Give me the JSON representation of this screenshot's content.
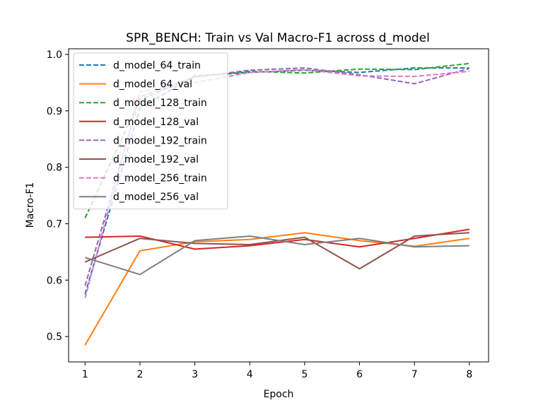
{
  "chart_data": {
    "type": "line",
    "title": "SPR_BENCH: Train vs Val Macro-F1 across d_model",
    "xlabel": "Epoch",
    "ylabel": "Macro-F1",
    "xlim": [
      0.7,
      8.35
    ],
    "ylim": [
      0.455,
      1.01
    ],
    "x": [
      1,
      2,
      3,
      4,
      5,
      6,
      7,
      8
    ],
    "x_ticks": [
      "1",
      "2",
      "3",
      "4",
      "5",
      "6",
      "7",
      "8"
    ],
    "y_ticks": [
      0.5,
      0.6,
      0.7,
      0.8,
      0.9,
      1.0
    ],
    "y_tick_labels": [
      "0.5",
      "0.6",
      "0.7",
      "0.8",
      "0.9",
      "1.0"
    ],
    "grid": false,
    "legend_position": "upper-left",
    "series": [
      {
        "name": "d_model_64_train",
        "color": "#1f77b4",
        "dash": "dashed",
        "values": [
          0.575,
          0.905,
          0.962,
          0.968,
          0.972,
          0.968,
          0.976,
          0.976
        ]
      },
      {
        "name": "d_model_64_val",
        "color": "#ff7f0e",
        "dash": "solid",
        "values": [
          0.485,
          0.652,
          0.668,
          0.672,
          0.684,
          0.67,
          0.66,
          0.674
        ]
      },
      {
        "name": "d_model_128_train",
        "color": "#2ca02c",
        "dash": "dashed",
        "values": [
          0.71,
          0.92,
          0.96,
          0.97,
          0.967,
          0.974,
          0.973,
          0.984
        ]
      },
      {
        "name": "d_model_128_val",
        "color": "#d62728",
        "dash": "solid",
        "values": [
          0.676,
          0.678,
          0.655,
          0.661,
          0.672,
          0.659,
          0.674,
          0.69
        ]
      },
      {
        "name": "d_model_192_train",
        "color": "#9467bd",
        "dash": "dashed",
        "values": [
          0.59,
          0.925,
          0.96,
          0.972,
          0.976,
          0.964,
          0.948,
          0.975
        ]
      },
      {
        "name": "d_model_192_val",
        "color": "#8c564b",
        "dash": "solid",
        "values": [
          0.632,
          0.674,
          0.665,
          0.663,
          0.676,
          0.62,
          0.678,
          0.684
        ]
      },
      {
        "name": "d_model_256_train",
        "color": "#e377c2",
        "dash": "dashed",
        "values": [
          0.568,
          0.934,
          0.95,
          0.968,
          0.973,
          0.962,
          0.961,
          0.97
        ]
      },
      {
        "name": "d_model_256_val",
        "color": "#7f7f7f",
        "dash": "solid",
        "values": [
          0.64,
          0.61,
          0.67,
          0.678,
          0.663,
          0.674,
          0.659,
          0.661
        ]
      }
    ]
  }
}
